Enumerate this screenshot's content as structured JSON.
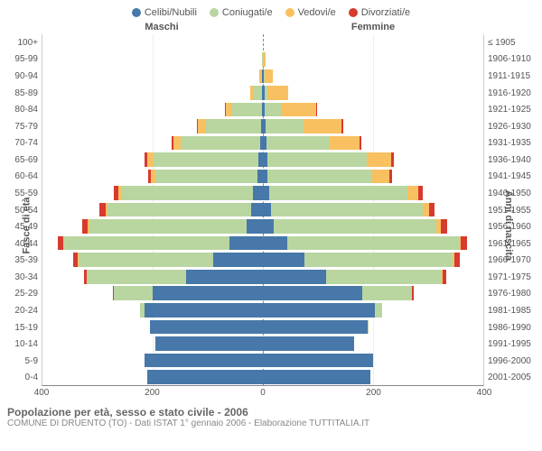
{
  "legend": [
    {
      "label": "Celibi/Nubili",
      "color": "#4778a9"
    },
    {
      "label": "Coniugati/e",
      "color": "#b9d6a1"
    },
    {
      "label": "Vedovi/e",
      "color": "#f9c061"
    },
    {
      "label": "Divorziati/e",
      "color": "#d73a2f"
    }
  ],
  "headers": {
    "male": "Maschi",
    "female": "Femmine"
  },
  "ylabel_left": "Fasce di età",
  "ylabel_right": "Anni di nascita",
  "age_labels": [
    "100+",
    "95-99",
    "90-94",
    "85-89",
    "80-84",
    "75-79",
    "70-74",
    "65-69",
    "60-64",
    "55-59",
    "50-54",
    "45-49",
    "40-44",
    "35-39",
    "30-34",
    "25-29",
    "20-24",
    "15-19",
    "10-14",
    "5-9",
    "0-4"
  ],
  "birth_labels": [
    "≤ 1905",
    "1906-1910",
    "1911-1915",
    "1916-1920",
    "1921-1925",
    "1926-1930",
    "1931-1935",
    "1936-1940",
    "1941-1945",
    "1946-1950",
    "1951-1955",
    "1956-1960",
    "1961-1965",
    "1966-1970",
    "1971-1975",
    "1976-1980",
    "1981-1985",
    "1986-1990",
    "1991-1995",
    "1996-2000",
    "2001-2005"
  ],
  "x_max": 400,
  "x_ticks": [
    400,
    200,
    0,
    200,
    400
  ],
  "colors": {
    "celibi": "#4778a9",
    "coniugati": "#b9d6a1",
    "vedovi": "#f9c061",
    "divorziati": "#d73a2f",
    "grid": "#eeeeee",
    "axis": "#888888",
    "background": "#ffffff"
  },
  "data": {
    "male": [
      {
        "c": 0,
        "m": 0,
        "v": 0,
        "d": 0
      },
      {
        "c": 0,
        "m": 2,
        "v": 0,
        "d": 0
      },
      {
        "c": 1,
        "m": 3,
        "v": 2,
        "d": 0
      },
      {
        "c": 2,
        "m": 16,
        "v": 5,
        "d": 0
      },
      {
        "c": 2,
        "m": 53,
        "v": 12,
        "d": 2
      },
      {
        "c": 3,
        "m": 100,
        "v": 15,
        "d": 2
      },
      {
        "c": 5,
        "m": 145,
        "v": 12,
        "d": 3
      },
      {
        "c": 8,
        "m": 190,
        "v": 12,
        "d": 5
      },
      {
        "c": 10,
        "m": 185,
        "v": 8,
        "d": 6
      },
      {
        "c": 18,
        "m": 240,
        "v": 5,
        "d": 8
      },
      {
        "c": 22,
        "m": 260,
        "v": 4,
        "d": 10
      },
      {
        "c": 30,
        "m": 285,
        "v": 3,
        "d": 10
      },
      {
        "c": 60,
        "m": 300,
        "v": 2,
        "d": 10
      },
      {
        "c": 90,
        "m": 245,
        "v": 1,
        "d": 8
      },
      {
        "c": 140,
        "m": 180,
        "v": 0,
        "d": 5
      },
      {
        "c": 200,
        "m": 70,
        "v": 0,
        "d": 2
      },
      {
        "c": 215,
        "m": 8,
        "v": 0,
        "d": 0
      },
      {
        "c": 205,
        "m": 0,
        "v": 0,
        "d": 0
      },
      {
        "c": 195,
        "m": 0,
        "v": 0,
        "d": 0
      },
      {
        "c": 215,
        "m": 0,
        "v": 0,
        "d": 0
      },
      {
        "c": 210,
        "m": 0,
        "v": 0,
        "d": 0
      }
    ],
    "female": [
      {
        "c": 0,
        "m": 0,
        "v": 0,
        "d": 0
      },
      {
        "c": 0,
        "m": 0,
        "v": 5,
        "d": 0
      },
      {
        "c": 2,
        "m": 1,
        "v": 15,
        "d": 0
      },
      {
        "c": 3,
        "m": 5,
        "v": 38,
        "d": 0
      },
      {
        "c": 4,
        "m": 28,
        "v": 65,
        "d": 2
      },
      {
        "c": 5,
        "m": 68,
        "v": 70,
        "d": 3
      },
      {
        "c": 6,
        "m": 115,
        "v": 55,
        "d": 3
      },
      {
        "c": 8,
        "m": 180,
        "v": 45,
        "d": 5
      },
      {
        "c": 9,
        "m": 190,
        "v": 30,
        "d": 6
      },
      {
        "c": 12,
        "m": 250,
        "v": 20,
        "d": 8
      },
      {
        "c": 15,
        "m": 275,
        "v": 12,
        "d": 10
      },
      {
        "c": 20,
        "m": 295,
        "v": 8,
        "d": 12
      },
      {
        "c": 45,
        "m": 310,
        "v": 4,
        "d": 12
      },
      {
        "c": 75,
        "m": 270,
        "v": 2,
        "d": 10
      },
      {
        "c": 115,
        "m": 210,
        "v": 1,
        "d": 6
      },
      {
        "c": 180,
        "m": 90,
        "v": 0,
        "d": 3
      },
      {
        "c": 203,
        "m": 14,
        "v": 0,
        "d": 0
      },
      {
        "c": 190,
        "m": 1,
        "v": 0,
        "d": 0
      },
      {
        "c": 165,
        "m": 0,
        "v": 0,
        "d": 0
      },
      {
        "c": 200,
        "m": 0,
        "v": 0,
        "d": 0
      },
      {
        "c": 195,
        "m": 0,
        "v": 0,
        "d": 0
      }
    ]
  },
  "footer": {
    "line1": "Popolazione per età, sesso e stato civile - 2006",
    "line2": "COMUNE DI DRUENTO (TO) - Dati ISTAT 1° gennaio 2006 - Elaborazione TUTTITALIA.IT"
  }
}
